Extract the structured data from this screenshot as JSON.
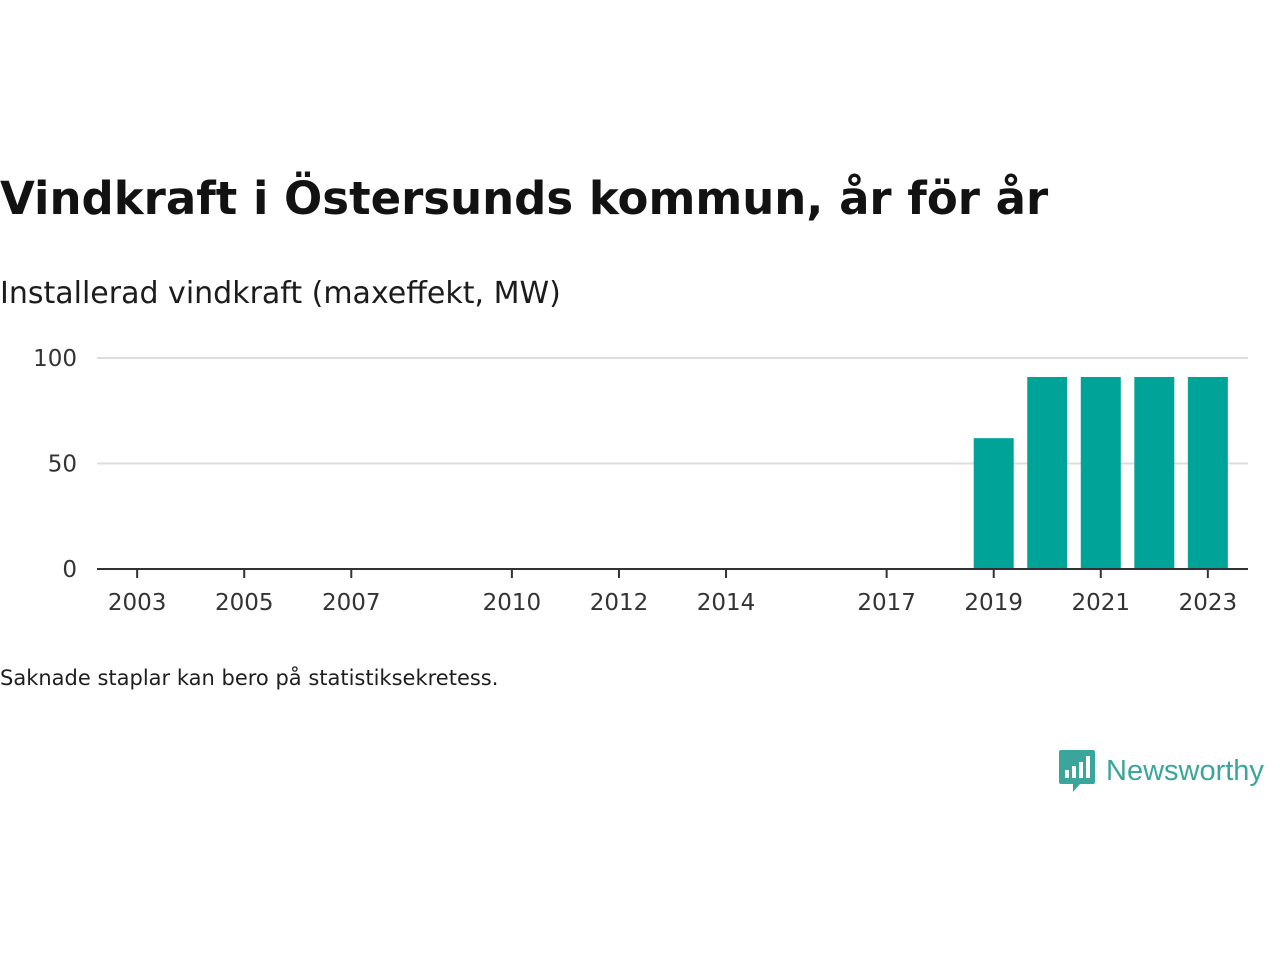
{
  "title": "Vindkraft i Östersunds kommun, år för år",
  "subtitle": "Installerad vindkraft (maxeffekt, MW)",
  "note": "Saknade staplar kan bero på statistiksekretess.",
  "logo": {
    "text": "Newsworthy",
    "icon": "newsworthy-logo-icon"
  },
  "colors": {
    "bar": "#00a398",
    "grid": "#dddddd",
    "axis": "#333333",
    "brand": "#3aa69b"
  },
  "chart_data": {
    "type": "bar",
    "title": "Vindkraft i Östersunds kommun, år för år",
    "subtitle": "Installerad vindkraft (maxeffekt, MW)",
    "xlabel": "",
    "ylabel": "",
    "ylim": [
      0,
      100
    ],
    "yticks": [
      0,
      50,
      100
    ],
    "grid": true,
    "x_range": [
      2002.25,
      2023.75
    ],
    "xtick_labels": [
      "2003",
      "2005",
      "2007",
      "2010",
      "2012",
      "2014",
      "2017",
      "2019",
      "2021",
      "2023"
    ],
    "categories": [
      "2019",
      "2020",
      "2021",
      "2022",
      "2023"
    ],
    "values": [
      62,
      91,
      91,
      91,
      91
    ]
  }
}
